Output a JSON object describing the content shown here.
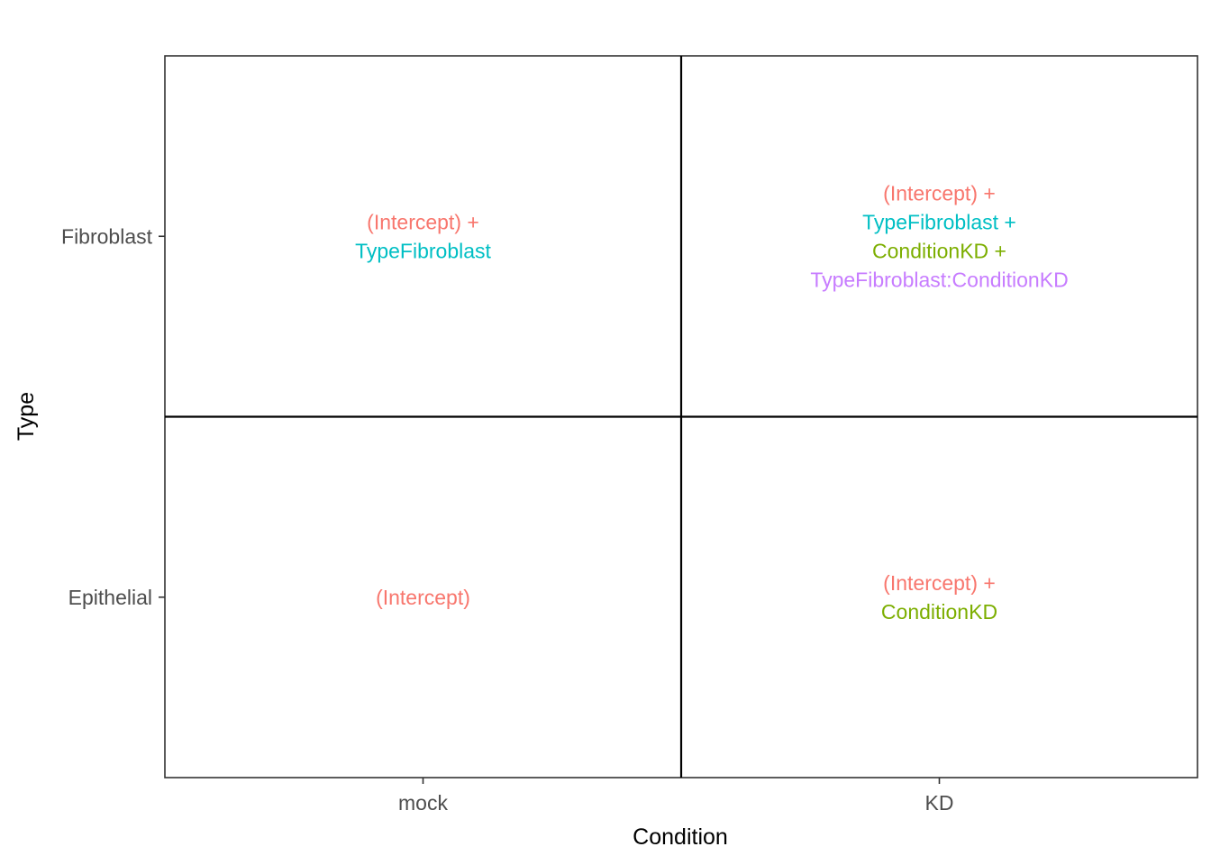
{
  "chart_data": {
    "type": "table",
    "xlabel": "Condition",
    "ylabel": "Type",
    "x_categories": [
      "mock",
      "KD"
    ],
    "y_categories": [
      "Epithelial",
      "Fibroblast"
    ],
    "term_colors": {
      "(Intercept)": "#F8766D",
      "TypeFibroblast": "#00BFC4",
      "ConditionKD": "#7CAE00",
      "TypeFibroblast:ConditionKD": "#C77CFF"
    },
    "cells": [
      {
        "x": "mock",
        "y": "Fibroblast",
        "lines": [
          {
            "text": "(Intercept) +",
            "term": "(Intercept)"
          },
          {
            "text": "TypeFibroblast",
            "term": "TypeFibroblast"
          }
        ]
      },
      {
        "x": "KD",
        "y": "Fibroblast",
        "lines": [
          {
            "text": "(Intercept) +",
            "term": "(Intercept)"
          },
          {
            "text": "TypeFibroblast +",
            "term": "TypeFibroblast"
          },
          {
            "text": "ConditionKD +",
            "term": "ConditionKD"
          },
          {
            "text": "TypeFibroblast:ConditionKD",
            "term": "TypeFibroblast:ConditionKD"
          }
        ]
      },
      {
        "x": "mock",
        "y": "Epithelial",
        "lines": [
          {
            "text": "(Intercept)",
            "term": "(Intercept)"
          }
        ]
      },
      {
        "x": "KD",
        "y": "Epithelial",
        "lines": [
          {
            "text": "(Intercept) +",
            "term": "(Intercept)"
          },
          {
            "text": "ConditionKD",
            "term": "ConditionKD"
          }
        ]
      }
    ]
  }
}
